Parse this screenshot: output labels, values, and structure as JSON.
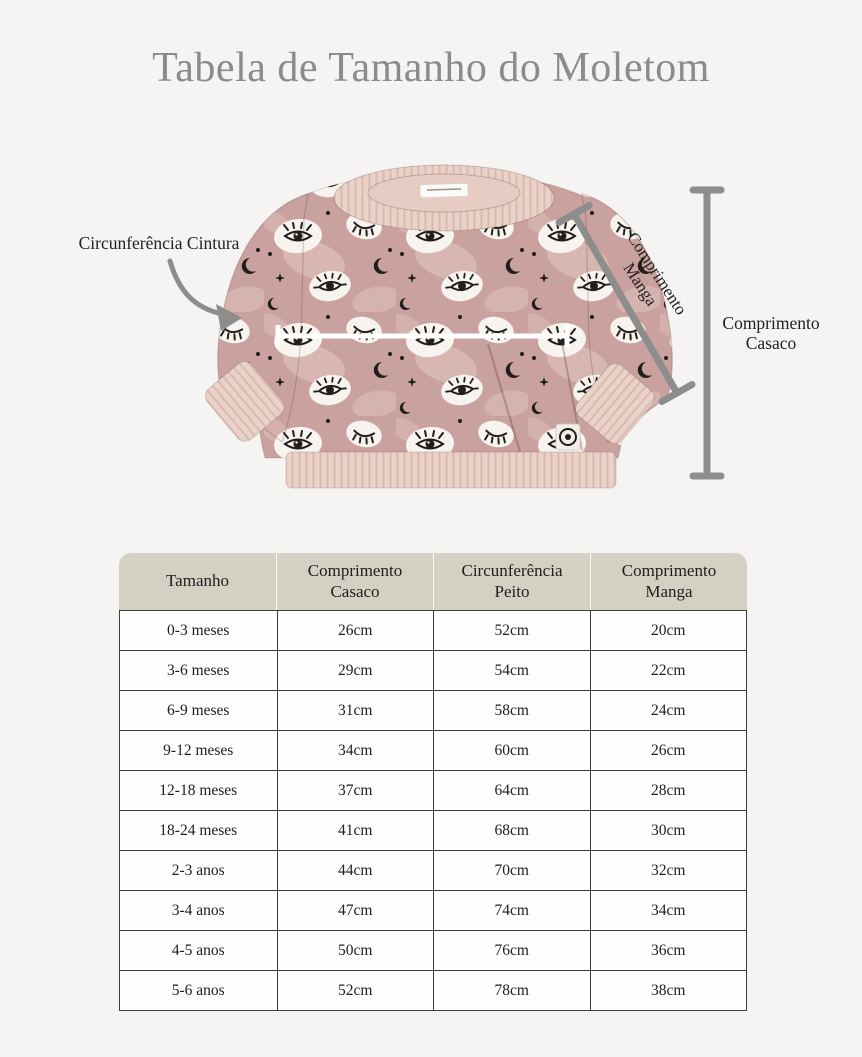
{
  "page": {
    "title": "Tabela de Tamanho do Moletom"
  },
  "diagram": {
    "labels": {
      "waist": "Circunferência Cintura",
      "sleeve_line1": "Comprimento",
      "sleeve_line2": "Manga",
      "coat_line1": "Comprimento",
      "coat_line2": "Casaco"
    },
    "icons": [
      "waist-curved-arrow",
      "sleeve-measure-line",
      "coat-measure-line",
      "chest-measure-line"
    ],
    "garment": "baby sweatshirt, dusty pink with eye-and-moon print, ribbed collar cuffs and hem, kangaroo pocket, black brand tag"
  },
  "colors": {
    "background": "#f5f4f2",
    "title_text": "#8b8b89",
    "label_text": "#242220",
    "measure_gray": "#8d8d8d",
    "measure_white": "#ffffff",
    "table_header_bg": "#d4d1c4",
    "table_border": "#3b3b39",
    "table_text": "#1e1e1c",
    "table_row_bg": "#fefefe",
    "sweater_pink": "#c9a19e",
    "sweater_splotch": "#e2c6bf",
    "rib_beige": "#ead2c9",
    "eye_white": "#f7f4ef",
    "ink_black": "#211e1c"
  },
  "table": {
    "headers": [
      "Tamanho",
      "Comprimento Casaco",
      "Circunferência Peito",
      "Comprimento Manga"
    ],
    "rows": [
      [
        "0-3 meses",
        "26cm",
        "52cm",
        "20cm"
      ],
      [
        "3-6 meses",
        "29cm",
        "54cm",
        "22cm"
      ],
      [
        "6-9 meses",
        "31cm",
        "58cm",
        "24cm"
      ],
      [
        "9-12 meses",
        "34cm",
        "60cm",
        "26cm"
      ],
      [
        "12-18 meses",
        "37cm",
        "64cm",
        "28cm"
      ],
      [
        "18-24 meses",
        "41cm",
        "68cm",
        "30cm"
      ],
      [
        "2-3 anos",
        "44cm",
        "70cm",
        "32cm"
      ],
      [
        "3-4 anos",
        "47cm",
        "74cm",
        "34cm"
      ],
      [
        "4-5 anos",
        "50cm",
        "76cm",
        "36cm"
      ],
      [
        "5-6 anos",
        "52cm",
        "78cm",
        "38cm"
      ]
    ]
  }
}
